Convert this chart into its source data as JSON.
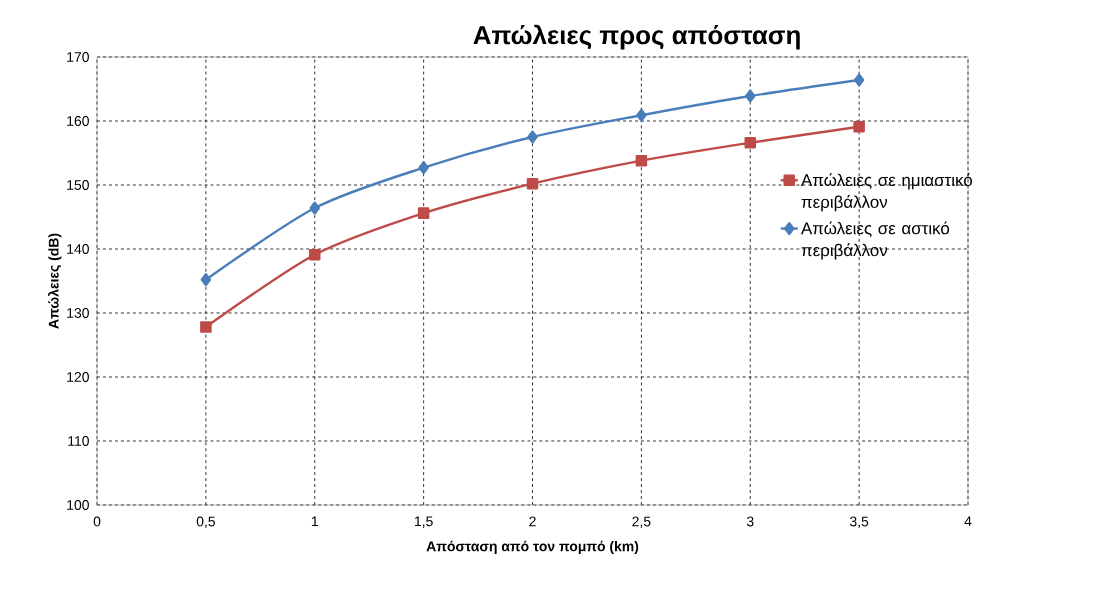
{
  "chart_data": {
    "type": "line",
    "title": "Απώλειες προς απόσταση",
    "xlabel": "Απόσταση από τον πομπό (km)",
    "ylabel": "Απώλειες (dB)",
    "x": [
      0.5,
      1,
      1.5,
      2,
      2.5,
      3,
      3.5
    ],
    "series": [
      {
        "name": "Απώλειες σε ημιαστικό περιβάλλον",
        "color": "#be4b48",
        "marker": "square",
        "values": [
          127.8,
          139.1,
          145.6,
          150.2,
          153.8,
          156.6,
          159.1
        ]
      },
      {
        "name": "Απώλειες σε αστικό περιβάλλον",
        "color": "#4a7ebb",
        "marker": "diamond",
        "values": [
          135.2,
          146.4,
          152.7,
          157.5,
          160.9,
          163.9,
          166.4
        ]
      }
    ],
    "xlim": [
      0,
      4
    ],
    "ylim": [
      100,
      170
    ],
    "xticks": [
      0,
      {
        "value": 0.5,
        "label": "0,5"
      },
      1,
      {
        "value": 1.5,
        "label": "1,5"
      },
      2,
      {
        "value": 2.5,
        "label": "2,5"
      },
      3,
      {
        "value": 3.5,
        "label": "3,5"
      },
      4
    ],
    "yticks": [
      100,
      110,
      120,
      130,
      140,
      150,
      160,
      170
    ],
    "grid": true,
    "legend": "right",
    "line_style": "solid"
  }
}
